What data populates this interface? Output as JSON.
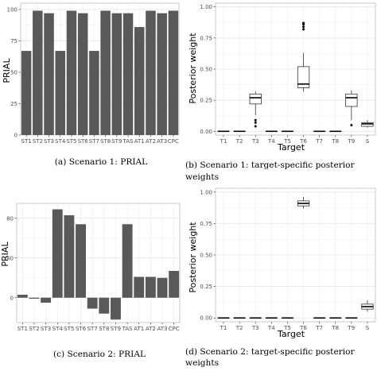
{
  "chart_data": [
    {
      "id": "a",
      "type": "bar",
      "caption": "(a) Scenario 1: PRIAL",
      "ylabel": "PRIAL",
      "xlabel": "",
      "ylim": [
        0,
        105
      ],
      "yticks": [
        0,
        25,
        50,
        75,
        100
      ],
      "grid": true,
      "bar_color": "#595959",
      "categories": [
        "ST1",
        "ST2",
        "ST3",
        "ST4",
        "ST5",
        "ST6",
        "ST7",
        "ST8",
        "ST9",
        "TAS",
        "AT1",
        "AT2",
        "AT3",
        "CPC"
      ],
      "values": [
        67,
        99,
        97,
        67,
        99,
        97,
        67,
        99,
        97,
        97,
        86,
        99,
        97,
        99
      ]
    },
    {
      "id": "b",
      "type": "box",
      "caption": [
        "(b)  Scenario  1:   target-specific  posterior",
        "weights"
      ],
      "ylabel": "Posterior weight",
      "xlabel": "Target",
      "ylim": [
        -0.03,
        1.03
      ],
      "yticks": [
        "0.00",
        "0.25",
        "0.50",
        "0.75",
        "1.00"
      ],
      "grid": true,
      "categories": [
        "T1",
        "T2",
        "T3",
        "T4",
        "T5",
        "T6",
        "T7",
        "T8",
        "T9",
        "S"
      ],
      "boxes": [
        {
          "min": 0,
          "q1": 0,
          "median": 0,
          "q3": 0,
          "max": 0,
          "outliers": []
        },
        {
          "min": 0,
          "q1": 0,
          "median": 0,
          "q3": 0,
          "max": 0,
          "outliers": []
        },
        {
          "min": 0.13,
          "q1": 0.22,
          "median": 0.27,
          "q3": 0.3,
          "max": 0.32,
          "outliers": [
            0.04,
            0.07,
            0.09
          ]
        },
        {
          "min": 0,
          "q1": 0,
          "median": 0,
          "q3": 0,
          "max": 0,
          "outliers": []
        },
        {
          "min": 0,
          "q1": 0,
          "median": 0,
          "q3": 0,
          "max": 0,
          "outliers": []
        },
        {
          "min": 0.32,
          "q1": 0.35,
          "median": 0.38,
          "q3": 0.52,
          "max": 0.63,
          "outliers": [
            0.82,
            0.84,
            0.86,
            0.87
          ]
        },
        {
          "min": 0,
          "q1": 0,
          "median": 0,
          "q3": 0,
          "max": 0,
          "outliers": []
        },
        {
          "min": 0,
          "q1": 0,
          "median": 0,
          "q3": 0,
          "max": 0,
          "outliers": []
        },
        {
          "min": 0.09,
          "q1": 0.2,
          "median": 0.27,
          "q3": 0.3,
          "max": 0.33,
          "outliers": [
            0.05
          ]
        },
        {
          "min": 0.03,
          "q1": 0.04,
          "median": 0.06,
          "q3": 0.07,
          "max": 0.09,
          "outliers": []
        }
      ]
    },
    {
      "id": "c",
      "type": "bar",
      "caption": "(c) Scenario 2: PRIAL",
      "ylabel": "PRIAL",
      "xlabel": "",
      "ylim": [
        -25,
        95
      ],
      "yticks": [
        0,
        40,
        80
      ],
      "grid": true,
      "bar_color": "#595959",
      "categories": [
        "ST1",
        "ST2",
        "ST3",
        "ST4",
        "ST5",
        "ST6",
        "ST7",
        "ST8",
        "ST9",
        "TAS",
        "AT1",
        "AT2",
        "AT3",
        "CPC"
      ],
      "values": [
        3,
        -1,
        -5,
        89,
        83,
        74,
        -11,
        -16,
        -22,
        74,
        21,
        21,
        20,
        27
      ]
    },
    {
      "id": "d",
      "type": "box",
      "caption": [
        "(d)  Scenario  2:   target-specific  posterior",
        "weights"
      ],
      "ylabel": "Posterior weight",
      "xlabel": "Target",
      "ylim": [
        -0.03,
        1.03
      ],
      "yticks": [
        "0.00",
        "0.25",
        "0.50",
        "0.75",
        "1.00"
      ],
      "grid": true,
      "categories": [
        "T1",
        "T2",
        "T3",
        "T4",
        "T5",
        "T6",
        "T7",
        "T8",
        "T9",
        "S"
      ],
      "boxes": [
        {
          "min": 0,
          "q1": 0,
          "median": 0,
          "q3": 0,
          "max": 0,
          "outliers": []
        },
        {
          "min": 0,
          "q1": 0,
          "median": 0,
          "q3": 0,
          "max": 0,
          "outliers": []
        },
        {
          "min": 0,
          "q1": 0,
          "median": 0,
          "q3": 0,
          "max": 0,
          "outliers": []
        },
        {
          "min": 0,
          "q1": 0,
          "median": 0,
          "q3": 0,
          "max": 0,
          "outliers": []
        },
        {
          "min": 0,
          "q1": 0,
          "median": 0,
          "q3": 0,
          "max": 0,
          "outliers": []
        },
        {
          "min": 0.87,
          "q1": 0.89,
          "median": 0.91,
          "q3": 0.93,
          "max": 0.96,
          "outliers": []
        },
        {
          "min": 0,
          "q1": 0,
          "median": 0,
          "q3": 0,
          "max": 0,
          "outliers": []
        },
        {
          "min": 0,
          "q1": 0,
          "median": 0,
          "q3": 0,
          "max": 0,
          "outliers": []
        },
        {
          "min": 0,
          "q1": 0,
          "median": 0,
          "q3": 0,
          "max": 0,
          "outliers": []
        },
        {
          "min": 0.05,
          "q1": 0.07,
          "median": 0.09,
          "q3": 0.11,
          "max": 0.14,
          "outliers": []
        }
      ]
    }
  ]
}
